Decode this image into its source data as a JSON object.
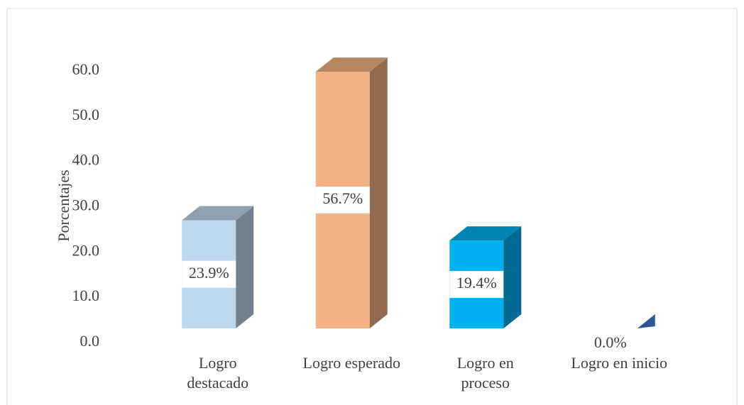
{
  "chart_data": {
    "type": "bar3d",
    "y_label": "Porcentajes",
    "categories": [
      "Logro destacado",
      "Logro esperado",
      "Logro en proceso",
      "Logro en inicio"
    ],
    "values": [
      23.9,
      56.7,
      19.4,
      0.0
    ],
    "value_labels": [
      "23.9%",
      "56.7%",
      "19.4%",
      "0.0%"
    ],
    "colors": [
      "#bdd7ee",
      "#f4b183",
      "#00b0f0",
      "#2f5597"
    ],
    "ylim": [
      0,
      60
    ],
    "yticks": [
      {
        "value": 0,
        "label": "0.0"
      },
      {
        "value": 10,
        "label": "10.0"
      },
      {
        "value": 20,
        "label": "20.0"
      },
      {
        "value": 30,
        "label": "30.0"
      },
      {
        "value": 40,
        "label": "40.0"
      },
      {
        "value": 50,
        "label": "50.0"
      },
      {
        "value": 60,
        "label": "60.0"
      }
    ],
    "grid": false
  }
}
